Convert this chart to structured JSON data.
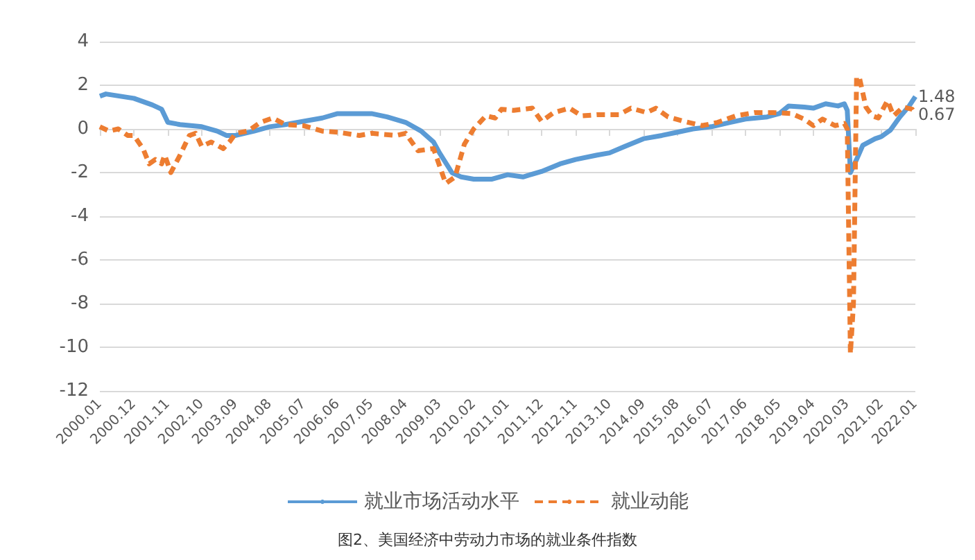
{
  "chart_data": {
    "type": "line",
    "title": "图2、美国经济中劳动力市场的就业条件指数",
    "xlim": [
      "2000-01",
      "2022-01"
    ],
    "xticks": [
      {
        "value": "2000-01",
        "label": "2000.01"
      },
      {
        "value": "2000-12",
        "label": "2000.12"
      },
      {
        "value": "2001-11",
        "label": "2001.11"
      },
      {
        "value": "2002-10",
        "label": "2002.10"
      },
      {
        "value": "2003-09",
        "label": "2003.09"
      },
      {
        "value": "2004-08",
        "label": "2004.08"
      },
      {
        "value": "2005-07",
        "label": "2005.07"
      },
      {
        "value": "2006-06",
        "label": "2006.06"
      },
      {
        "value": "2007-05",
        "label": "2007.05"
      },
      {
        "value": "2008-04",
        "label": "2008.04"
      },
      {
        "value": "2009-03",
        "label": "2009.03"
      },
      {
        "value": "2010-02",
        "label": "2010.02"
      },
      {
        "value": "2011-01",
        "label": "2011.01"
      },
      {
        "value": "2011-12",
        "label": "2011.12"
      },
      {
        "value": "2012-11",
        "label": "2012.11"
      },
      {
        "value": "2013-10",
        "label": "2013.10"
      },
      {
        "value": "2014-09",
        "label": "2014.09"
      },
      {
        "value": "2015-08",
        "label": "2015.08"
      },
      {
        "value": "2016-07",
        "label": "2016.07"
      },
      {
        "value": "2017-06",
        "label": "2017.06"
      },
      {
        "value": "2018-05",
        "label": "2018.05"
      },
      {
        "value": "2019-04",
        "label": "2019.04"
      },
      {
        "value": "2020-03",
        "label": "2020.03"
      },
      {
        "value": "2021-02",
        "label": "2021.02"
      },
      {
        "value": "2022-01",
        "label": "2022.01"
      }
    ],
    "ylim": [
      -12,
      4
    ],
    "yticks": [
      -12,
      -10,
      -8,
      -6,
      -4,
      -2,
      0,
      2,
      4
    ],
    "grid": "y",
    "legend": "bottom",
    "marker": "none",
    "series": [
      {
        "name": "就业市场活动水平",
        "color": "#5b9bd5",
        "line_style": "solid",
        "x": [
          "2000-01",
          "2000-03",
          "2000-12",
          "2001-06",
          "2001-09",
          "2001-11",
          "2002-03",
          "2002-10",
          "2003-03",
          "2003-06",
          "2003-09",
          "2004-03",
          "2004-08",
          "2005-01",
          "2005-07",
          "2006-01",
          "2006-06",
          "2007-05",
          "2007-10",
          "2008-04",
          "2008-09",
          "2009-01",
          "2009-03",
          "2009-07",
          "2009-10",
          "2010-02",
          "2010-08",
          "2011-01",
          "2011-06",
          "2011-12",
          "2012-06",
          "2012-11",
          "2013-06",
          "2013-10",
          "2014-03",
          "2014-09",
          "2015-03",
          "2015-08",
          "2016-01",
          "2016-07",
          "2017-01",
          "2017-06",
          "2018-01",
          "2018-05",
          "2018-08",
          "2019-01",
          "2019-04",
          "2019-08",
          "2019-12",
          "2020-02",
          "2020-03",
          "2020-04",
          "2020-06",
          "2020-08",
          "2020-12",
          "2021-02",
          "2021-05",
          "2021-08",
          "2021-11",
          "2022-01"
        ],
        "values": [
          1.5,
          1.6,
          1.4,
          1.1,
          0.9,
          0.3,
          0.2,
          0.1,
          -0.1,
          -0.3,
          -0.3,
          -0.1,
          0.1,
          0.2,
          0.35,
          0.5,
          0.7,
          0.7,
          0.55,
          0.3,
          -0.1,
          -0.6,
          -1.1,
          -2.0,
          -2.2,
          -2.3,
          -2.3,
          -2.1,
          -2.2,
          -1.95,
          -1.6,
          -1.4,
          -1.2,
          -1.1,
          -0.8,
          -0.45,
          -0.3,
          -0.15,
          0,
          0.1,
          0.3,
          0.45,
          0.55,
          0.7,
          1.05,
          1.0,
          0.95,
          1.15,
          1.05,
          1.15,
          0.85,
          -2.0,
          -1.4,
          -0.75,
          -0.45,
          -0.35,
          -0.05,
          0.55,
          1.05,
          1.48
        ],
        "value_labels": [
          null,
          null,
          null,
          null,
          null,
          null,
          null,
          null,
          null,
          null,
          null,
          null,
          null,
          null,
          null,
          null,
          null,
          null,
          null,
          null,
          null,
          null,
          null,
          null,
          null,
          null,
          null,
          null,
          null,
          null,
          null,
          null,
          null,
          null,
          null,
          null,
          null,
          null,
          null,
          null,
          null,
          null,
          null,
          null,
          null,
          null,
          null,
          null,
          null,
          null,
          null,
          null,
          null,
          null,
          null,
          null,
          null,
          null,
          null,
          "1.48"
        ]
      },
      {
        "name": "就业动能",
        "color": "#ed7d31",
        "line_style": "dashed",
        "x": [
          "2000-01",
          "2000-04",
          "2000-07",
          "2000-10",
          "2000-12",
          "2001-03",
          "2001-05",
          "2001-07",
          "2001-09",
          "2001-10",
          "2001-12",
          "2002-03",
          "2002-06",
          "2002-08",
          "2002-10",
          "2003-01",
          "2003-05",
          "2003-07",
          "2003-09",
          "2004-01",
          "2004-05",
          "2004-09",
          "2005-01",
          "2005-07",
          "2006-01",
          "2006-06",
          "2007-01",
          "2007-05",
          "2008-01",
          "2008-04",
          "2008-08",
          "2009-01",
          "2009-05",
          "2009-08",
          "2009-11",
          "2010-02",
          "2010-06",
          "2010-09",
          "2010-11",
          "2011-03",
          "2011-09",
          "2011-12",
          "2012-04",
          "2012-09",
          "2013-01",
          "2013-06",
          "2014-01",
          "2014-05",
          "2014-10",
          "2015-01",
          "2015-05",
          "2015-10",
          "2016-04",
          "2016-09",
          "2017-03",
          "2017-09",
          "2018-03",
          "2018-09",
          "2019-01",
          "2019-04",
          "2019-07",
          "2019-11",
          "2020-02",
          "2020-03",
          "2020-04",
          "2020-05",
          "2020-06",
          "2020-07",
          "2020-09",
          "2020-11",
          "2021-01",
          "2021-04",
          "2021-06",
          "2021-09",
          "2021-12",
          "2022-01"
        ],
        "values": [
          0.1,
          -0.1,
          0,
          -0.3,
          -0.3,
          -0.9,
          -1.6,
          -1.4,
          -1.6,
          -1.2,
          -2.0,
          -1.2,
          -0.3,
          -0.2,
          -0.8,
          -0.6,
          -0.9,
          -0.6,
          -0.2,
          -0.1,
          0.3,
          0.5,
          0.2,
          0.15,
          -0.1,
          -0.15,
          -0.3,
          -0.2,
          -0.3,
          -0.2,
          -1.0,
          -0.9,
          -2.5,
          -2.2,
          -0.7,
          0.0,
          0.6,
          0.5,
          0.9,
          0.85,
          0.95,
          0.35,
          0.75,
          0.95,
          0.6,
          0.65,
          0.65,
          0.95,
          0.75,
          0.95,
          0.55,
          0.35,
          0.15,
          0.3,
          0.6,
          0.75,
          0.75,
          0.7,
          0.45,
          0.15,
          0.45,
          0.15,
          0.25,
          0.0,
          -10.3,
          -8,
          2.4,
          2.3,
          1.0,
          0.6,
          0.5,
          1.3,
          0.6,
          1.0,
          0.9,
          0.67
        ],
        "value_labels": [
          null,
          null,
          null,
          null,
          null,
          null,
          null,
          null,
          null,
          null,
          null,
          null,
          null,
          null,
          null,
          null,
          null,
          null,
          null,
          null,
          null,
          null,
          null,
          null,
          null,
          null,
          null,
          null,
          null,
          null,
          null,
          null,
          null,
          null,
          null,
          null,
          null,
          null,
          null,
          null,
          null,
          null,
          null,
          null,
          null,
          null,
          null,
          null,
          null,
          null,
          null,
          null,
          null,
          null,
          null,
          null,
          null,
          null,
          null,
          null,
          null,
          null,
          null,
          null,
          null,
          null,
          null,
          null,
          null,
          null,
          null,
          null,
          null,
          null,
          null,
          "0.67"
        ]
      }
    ]
  }
}
